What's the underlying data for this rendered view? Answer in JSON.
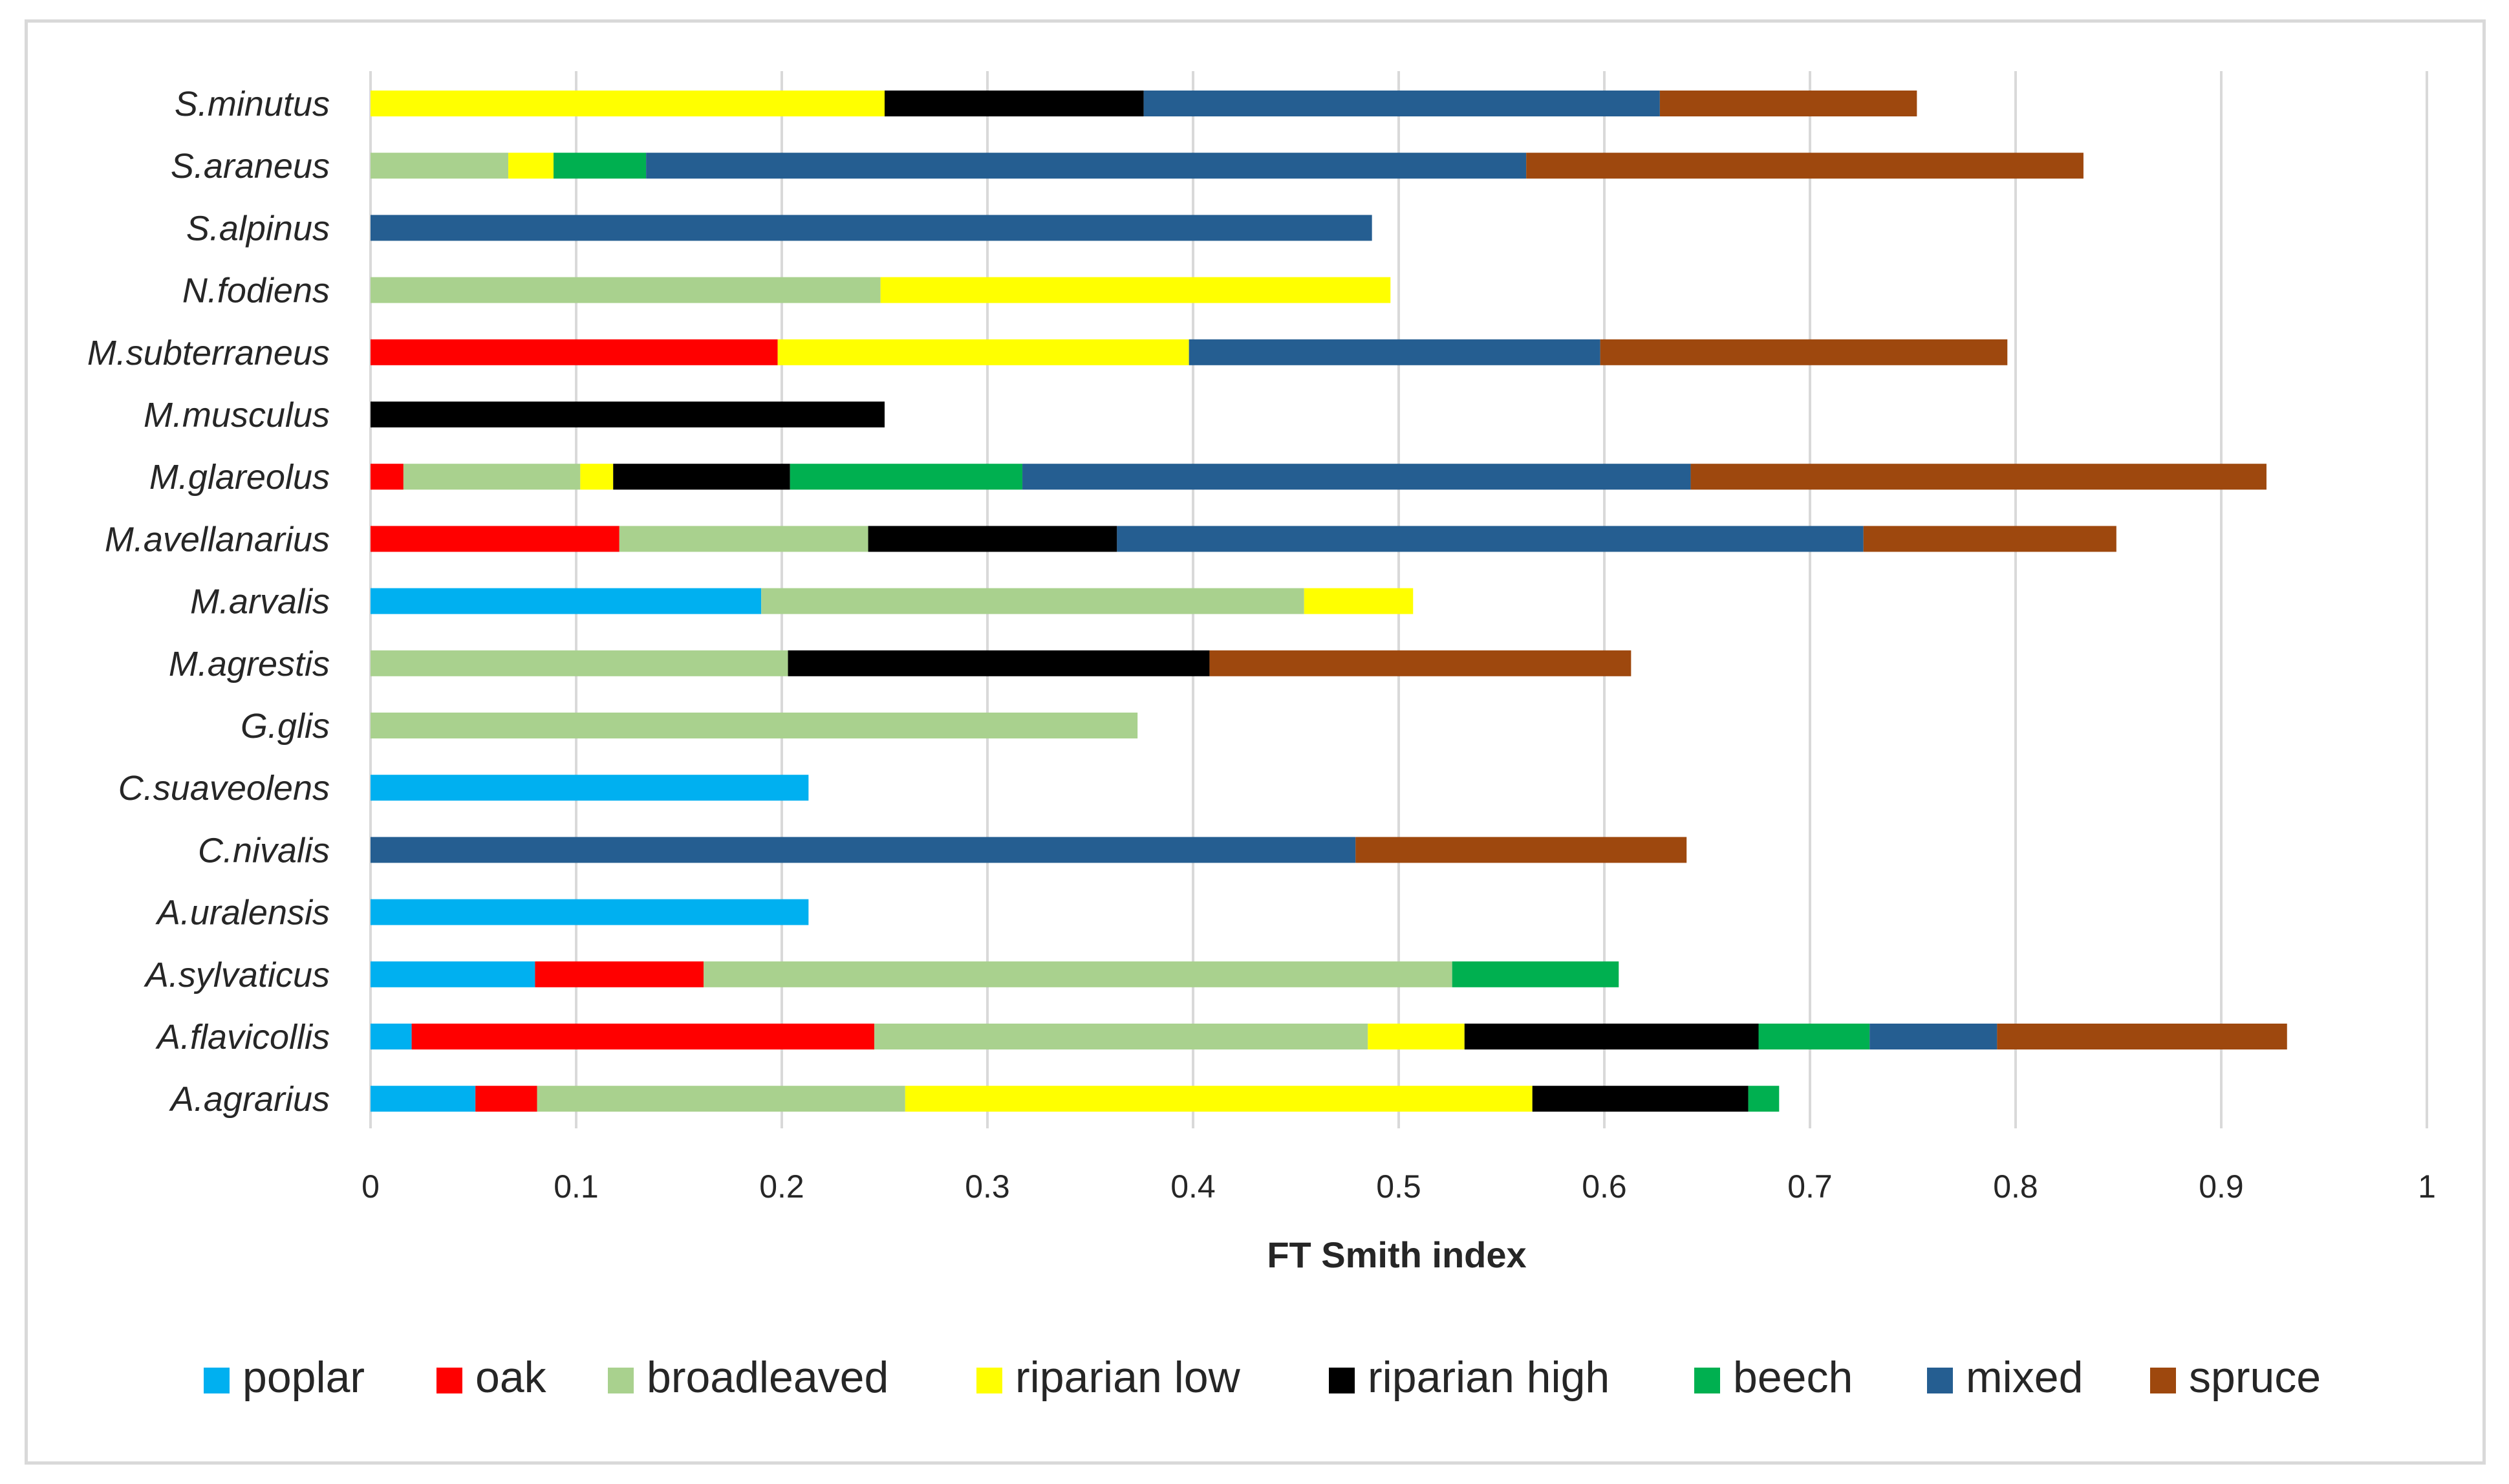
{
  "chart_data": {
    "type": "bar",
    "orientation": "horizontal",
    "stacked": true,
    "title": "",
    "xlabel": "FT Smith index",
    "ylabel": "",
    "xlim": [
      0,
      1
    ],
    "xticks": [
      0,
      0.1,
      0.2,
      0.3,
      0.4,
      0.5,
      0.6,
      0.7,
      0.8,
      0.9,
      1
    ],
    "xtick_labels": [
      "0",
      "0.1",
      "0.2",
      "0.3",
      "0.4",
      "0.5",
      "0.6",
      "0.7",
      "0.8",
      "0.9",
      "1"
    ],
    "grid": "vertical",
    "legend_position": "bottom",
    "categories": [
      "S.minutus",
      "S.araneus",
      "S.alpinus",
      "N.fodiens",
      "M.subterraneus",
      "M.musculus",
      "M.glareolus",
      "M.avellanarius",
      "M.arvalis",
      "M.agrestis",
      "G.glis",
      "C.suaveolens",
      "C.nivalis",
      "A.uralensis",
      "A.sylvaticus",
      "A.flavicollis",
      "A.agrarius"
    ],
    "series": [
      {
        "name": "poplar",
        "color": "#00b0f0",
        "values": [
          0,
          0,
          0,
          0,
          0,
          0,
          0,
          0,
          0.19,
          0,
          0,
          0.213,
          0,
          0.213,
          0.08,
          0.02,
          0.051
        ]
      },
      {
        "name": "oak",
        "color": "#ff0000",
        "values": [
          0,
          0,
          0,
          0,
          0.198,
          0,
          0.016,
          0.121,
          0,
          0,
          0,
          0,
          0,
          0,
          0.082,
          0.225,
          0.03
        ]
      },
      {
        "name": "broadleaved",
        "color": "#a9d18e",
        "values": [
          0,
          0.067,
          0,
          0.248,
          0,
          0,
          0.086,
          0.121,
          0.264,
          0.203,
          0.373,
          0,
          0,
          0,
          0.364,
          0.24,
          0.179
        ]
      },
      {
        "name": "riparian low",
        "color": "#ffff00",
        "values": [
          0.25,
          0.022,
          0,
          0.248,
          0.2,
          0,
          0.016,
          0,
          0.053,
          0,
          0,
          0,
          0,
          0,
          0,
          0.047,
          0.305
        ]
      },
      {
        "name": "riparian high",
        "color": "#000000",
        "values": [
          0.126,
          0,
          0,
          0,
          0,
          0.25,
          0.086,
          0.121,
          0,
          0.205,
          0,
          0,
          0,
          0,
          0,
          0.143,
          0.105
        ]
      },
      {
        "name": "beech",
        "color": "#00b050",
        "values": [
          0,
          0.045,
          0,
          0,
          0,
          0,
          0.113,
          0,
          0,
          0,
          0,
          0,
          0,
          0,
          0.081,
          0.054,
          0.015
        ]
      },
      {
        "name": "mixed",
        "color": "#255e91",
        "values": [
          0.251,
          0.428,
          0.487,
          0,
          0.2,
          0,
          0.325,
          0.363,
          0,
          0,
          0,
          0,
          0.479,
          0,
          0,
          0.062,
          0
        ]
      },
      {
        "name": "spruce",
        "color": "#9e480e",
        "values": [
          0.125,
          0.271,
          0,
          0,
          0.198,
          0,
          0.28,
          0.123,
          0,
          0.205,
          0,
          0,
          0.161,
          0,
          0,
          0.141,
          0
        ]
      }
    ]
  }
}
